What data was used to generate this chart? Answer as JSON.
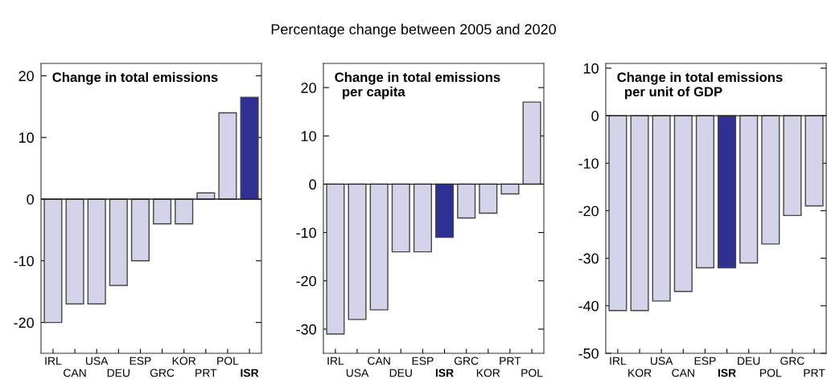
{
  "chart_data": [
    {
      "type": "bar",
      "title": "Change in total emissions",
      "annotations": [
        "Percentage change between 2005 and 2020"
      ],
      "categories": [
        "IRL",
        "CAN",
        "USA",
        "DEU",
        "ESP",
        "GRC",
        "KOR",
        "PRT",
        "POL",
        "ISR"
      ],
      "values": [
        -20,
        -17,
        -17,
        -14,
        -10,
        -4,
        -4,
        1,
        14,
        16.5
      ],
      "colors": [
        "#d3d3ea",
        "#d3d3ea",
        "#d3d3ea",
        "#d3d3ea",
        "#d3d3ea",
        "#d3d3ea",
        "#d3d3ea",
        "#d3d3ea",
        "#d3d3ea",
        "#2e3192"
      ],
      "ylim": [
        -25,
        22
      ],
      "yticks": [
        -20,
        -10,
        0,
        10,
        20
      ]
    },
    {
      "type": "bar",
      "title": "Change in total emissions\n  per capita",
      "categories": [
        "IRL",
        "USA",
        "CAN",
        "DEU",
        "ESP",
        "ISR",
        "GRC",
        "KOR",
        "PRT",
        "POL"
      ],
      "values": [
        -31,
        -28,
        -26,
        -14,
        -14,
        -11,
        -7,
        -6,
        -2,
        17
      ],
      "colors": [
        "#d3d3ea",
        "#d3d3ea",
        "#d3d3ea",
        "#d3d3ea",
        "#d3d3ea",
        "#2e3192",
        "#d3d3ea",
        "#d3d3ea",
        "#d3d3ea",
        "#d3d3ea"
      ],
      "ylim": [
        -35,
        25
      ],
      "yticks": [
        -30,
        -20,
        -10,
        0,
        10,
        20
      ]
    },
    {
      "type": "bar",
      "title": "Change in total emissions\n  per unit of GDP",
      "categories": [
        "IRL",
        "KOR",
        "USA",
        "CAN",
        "ESP",
        "ISR",
        "DEU",
        "POL",
        "GRC",
        "PRT"
      ],
      "values": [
        -41,
        -41,
        -39,
        -37,
        -32,
        -32,
        -31,
        -27,
        -21,
        -19
      ],
      "colors": [
        "#d3d3ea",
        "#d3d3ea",
        "#d3d3ea",
        "#d3d3ea",
        "#d3d3ea",
        "#2e3192",
        "#d3d3ea",
        "#d3d3ea",
        "#d3d3ea",
        "#d3d3ea"
      ],
      "ylim": [
        -50,
        11
      ],
      "yticks": [
        -50,
        -40,
        -30,
        -20,
        -10,
        0,
        10
      ]
    }
  ]
}
